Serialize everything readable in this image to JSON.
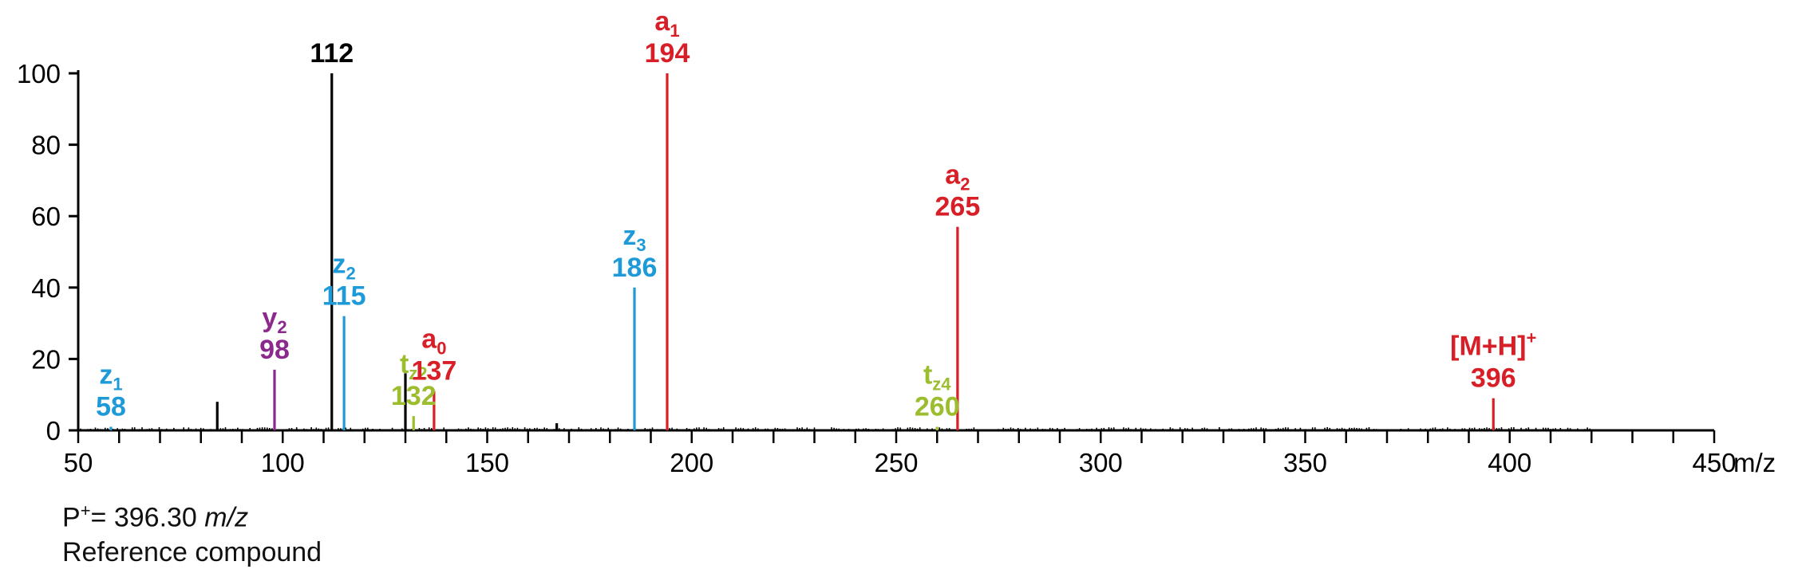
{
  "chart_data": {
    "type": "bar",
    "xlabel": "m/z",
    "xlim": [
      50,
      450
    ],
    "ylim": [
      0,
      100
    ],
    "x_ticks": [
      50,
      100,
      150,
      200,
      250,
      300,
      350,
      400,
      450
    ],
    "x_tick_labels": [
      "50",
      "100",
      "150",
      "200",
      "250",
      "300",
      "350",
      "400",
      "450"
    ],
    "y_ticks": [
      0,
      20,
      40,
      60,
      80,
      100
    ],
    "y_tick_labels": [
      "0",
      "20",
      "40",
      "60",
      "80",
      "100"
    ],
    "grid": false,
    "colors": {
      "black": "#000000",
      "red": "#d81e26",
      "blue": "#1f9ad8",
      "purple": "#8b2a8c",
      "green": "#9bbd2e"
    },
    "peaks": [
      {
        "mz": 58,
        "intensity": 1,
        "color": "blue",
        "ion": "z",
        "sub": "1",
        "sup": "",
        "value_label": "58"
      },
      {
        "mz": 84,
        "intensity": 8,
        "color": "black",
        "ion": "",
        "sub": "",
        "sup": "",
        "value_label": ""
      },
      {
        "mz": 98,
        "intensity": 17,
        "color": "purple",
        "ion": "y",
        "sub": "2",
        "sup": "",
        "value_label": "98"
      },
      {
        "mz": 112,
        "intensity": 100,
        "color": "black",
        "ion": "",
        "sub": "",
        "sup": "",
        "value_label": "112"
      },
      {
        "mz": 115,
        "intensity": 32,
        "color": "blue",
        "ion": "z",
        "sub": "2",
        "sup": "",
        "value_label": "115"
      },
      {
        "mz": 130,
        "intensity": 16,
        "color": "black",
        "ion": "",
        "sub": "",
        "sup": "",
        "value_label": ""
      },
      {
        "mz": 132,
        "intensity": 4,
        "color": "green",
        "ion": "t",
        "sub": "z2",
        "sup": "",
        "value_label": "132"
      },
      {
        "mz": 137,
        "intensity": 11,
        "color": "red",
        "ion": "a",
        "sub": "0",
        "sup": "",
        "value_label": "137"
      },
      {
        "mz": 167,
        "intensity": 2,
        "color": "black",
        "ion": "",
        "sub": "",
        "sup": "",
        "value_label": ""
      },
      {
        "mz": 186,
        "intensity": 40,
        "color": "blue",
        "ion": "z",
        "sub": "3",
        "sup": "",
        "value_label": "186"
      },
      {
        "mz": 194,
        "intensity": 100,
        "color": "red",
        "ion": "a",
        "sub": "1",
        "sup": "",
        "value_label": "194"
      },
      {
        "mz": 260,
        "intensity": 1,
        "color": "green",
        "ion": "t",
        "sub": "z4",
        "sup": "",
        "value_label": "260"
      },
      {
        "mz": 265,
        "intensity": 57,
        "color": "red",
        "ion": "a",
        "sub": "2",
        "sup": "",
        "value_label": "265"
      },
      {
        "mz": 396,
        "intensity": 9,
        "color": "red",
        "ion": "[M+H]",
        "sub": "",
        "sup": "+",
        "value_label": "396"
      }
    ]
  },
  "caption": {
    "precursor_prefix": "P",
    "precursor_sup": "+",
    "precursor_value": "= 396.30 ",
    "precursor_unit": "m/z",
    "compound": "Reference compound"
  }
}
